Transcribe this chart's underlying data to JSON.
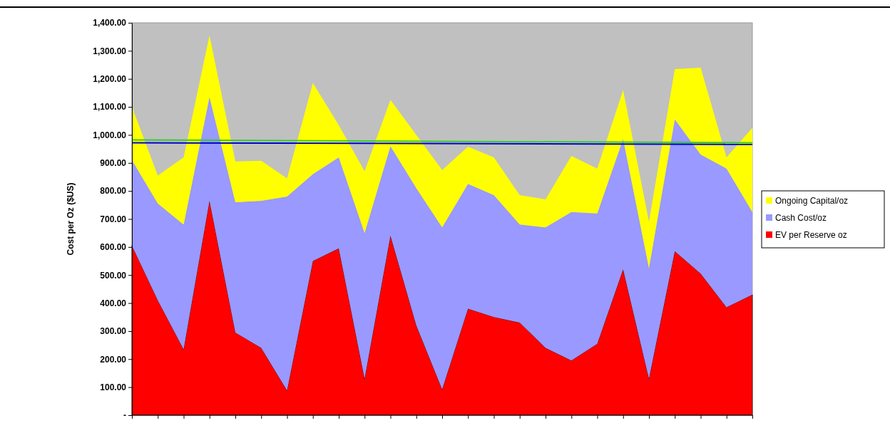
{
  "chart_data": {
    "type": "area",
    "stacked": true,
    "ylabel": "Cost per Oz ($US)",
    "categories": [
      null,
      null,
      null,
      null,
      null,
      null,
      null,
      null,
      null,
      null,
      null,
      null,
      null,
      null,
      null,
      null,
      null,
      null,
      null,
      null,
      null,
      null,
      null,
      null,
      null
    ],
    "series": [
      {
        "name": "EV per Reserve oz",
        "color": "#ff0000",
        "values": [
          605,
          410,
          235,
          765,
          295,
          240,
          88,
          550,
          595,
          130,
          640,
          320,
          92,
          380,
          350,
          330,
          240,
          195,
          255,
          520,
          130,
          585,
          505,
          385,
          430
        ]
      },
      {
        "name": "Cash Cost/oz",
        "color": "#9999ff",
        "values": [
          305,
          345,
          445,
          370,
          465,
          525,
          692,
          310,
          325,
          520,
          320,
          490,
          578,
          445,
          435,
          350,
          430,
          530,
          465,
          465,
          395,
          470,
          425,
          495,
          295
        ]
      },
      {
        "name": "Ongoing Capital/oz",
        "color": "#ffff00",
        "values": [
          190,
          100,
          240,
          220,
          145,
          143,
          65,
          325,
          115,
          220,
          165,
          190,
          205,
          133,
          135,
          105,
          100,
          200,
          160,
          175,
          165,
          180,
          310,
          40,
          300
        ]
      },
      {
        "type": "line",
        "color": "#33cc33",
        "values": [
          982,
          null,
          null,
          null,
          null,
          null,
          null,
          null,
          null,
          null,
          null,
          null,
          null,
          null,
          null,
          null,
          null,
          null,
          null,
          null,
          null,
          null,
          null,
          null,
          972
        ]
      },
      {
        "type": "line",
        "color": "#0000cc",
        "values": [
          972,
          null,
          null,
          null,
          null,
          null,
          null,
          null,
          null,
          null,
          null,
          null,
          null,
          null,
          null,
          null,
          null,
          null,
          null,
          null,
          null,
          null,
          null,
          null,
          966
        ]
      }
    ],
    "ylim": [
      0,
      1400
    ],
    "yticks": [
      {
        "value": 0,
        "label": "-"
      },
      {
        "value": 100,
        "label": "100.00"
      },
      {
        "value": 200,
        "label": "200.00"
      },
      {
        "value": 300,
        "label": "300.00"
      },
      {
        "value": 400,
        "label": "400.00"
      },
      {
        "value": 500,
        "label": "500.00"
      },
      {
        "value": 600,
        "label": "600.00"
      },
      {
        "value": 700,
        "label": "700.00"
      },
      {
        "value": 800,
        "label": "800.00"
      },
      {
        "value": 900,
        "label": "900.00"
      },
      {
        "value": 1000,
        "label": "1,000.00"
      },
      {
        "value": 1100,
        "label": "1,100.00"
      },
      {
        "value": 1200,
        "label": "1,200.00"
      },
      {
        "value": 1300,
        "label": "1,300.00"
      },
      {
        "value": 1400,
        "label": "1,400.00"
      }
    ],
    "grid": false,
    "legend": "right"
  }
}
